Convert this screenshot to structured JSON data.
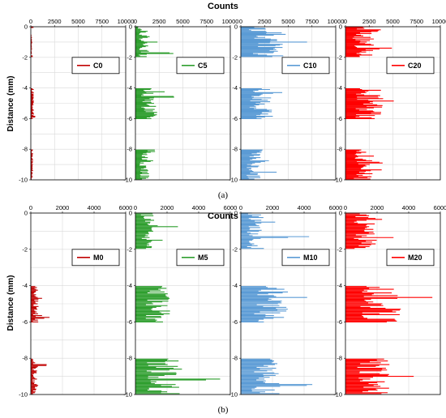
{
  "figure": {
    "caption_a": "(a)",
    "caption_b": "(b)",
    "colors": {
      "0": "#C00000",
      "5": "#2E9E2E",
      "10": "#5B9BD5",
      "20": "#FF0000"
    }
  },
  "chart_data": [
    {
      "type": "bar",
      "orientation": "horizontal",
      "title": "Counts",
      "ylabel": "Distance (mm)",
      "xlim": [
        0,
        10000
      ],
      "xticks": [
        "0",
        "2500",
        "5000",
        "7500",
        "10000"
      ],
      "ylim": [
        -10,
        0
      ],
      "yticks": [
        "0",
        "-2",
        "-4",
        "-6",
        "-8",
        "-10"
      ],
      "grid": true,
      "legend_position": "center-right",
      "panels": [
        {
          "name": "C0",
          "color": "#C00000",
          "profile": [
            [
              -0.0,
              0.05,
              300
            ],
            [
              -0.5,
              1.8,
              150
            ],
            [
              -1.9,
              2.0,
              250
            ],
            [
              -4.0,
              6.0,
              350
            ],
            [
              -5.8,
              5.9,
              900
            ],
            [
              -8.0,
              10.0,
              250
            ]
          ],
          "seed": 11
        },
        {
          "name": "C5",
          "color": "#2E9E2E",
          "profile": [
            [
              -0.0,
              0.3,
              900
            ],
            [
              -0.3,
              1.8,
              1500
            ],
            [
              -1.0,
              1.1,
              2700
            ],
            [
              -1.7,
              1.8,
              4300
            ],
            [
              -1.8,
              2.0,
              1200
            ],
            [
              -4.0,
              6.0,
              2300
            ],
            [
              -4.5,
              4.6,
              4300
            ],
            [
              -4.2,
              4.3,
              3200
            ],
            [
              -8.0,
              10.0,
              1500
            ],
            [
              -8.0,
              8.2,
              2700
            ],
            [
              -8.7,
              8.8,
              3700
            ]
          ],
          "seed": 22
        },
        {
          "name": "C10",
          "color": "#5B9BD5",
          "profile": [
            [
              -0.0,
              0.3,
              3000
            ],
            [
              -0.3,
              2.0,
              4500
            ],
            [
              -1.0,
              1.1,
              9000
            ],
            [
              -0.4,
              0.5,
              4900
            ],
            [
              -1.9,
              2.0,
              6000
            ],
            [
              -4.0,
              6.0,
              3500
            ],
            [
              -4.2,
              4.3,
              4500
            ],
            [
              -5.5,
              5.6,
              4600
            ],
            [
              -8.0,
              10.0,
              2300
            ],
            [
              -9.4,
              9.5,
              4200
            ],
            [
              -8.7,
              8.8,
              3500
            ]
          ],
          "seed": 33
        },
        {
          "name": "C20",
          "color": "#FF0000",
          "profile": [
            [
              -0.0,
              2.0,
              3000
            ],
            [
              -0.2,
              0.3,
              4200
            ],
            [
              -1.4,
              1.5,
              5200
            ],
            [
              -4.0,
              6.0,
              4200
            ],
            [
              -5.6,
              5.7,
              8800
            ],
            [
              -4.8,
              4.9,
              6400
            ],
            [
              -8.0,
              10.0,
              3000
            ],
            [
              -8.8,
              8.9,
              4100
            ],
            [
              -9.3,
              9.4,
              4100
            ]
          ],
          "seed": 44
        }
      ]
    },
    {
      "type": "bar",
      "orientation": "horizontal",
      "title": "Counts",
      "ylabel": "Distance (mm)",
      "xlim": [
        0,
        6000
      ],
      "xticks": [
        "0",
        "2000",
        "4000",
        "6000"
      ],
      "ylim": [
        -10,
        0
      ],
      "yticks": [
        "0",
        "-2",
        "-4",
        "-6",
        "-8",
        "-10"
      ],
      "grid": true,
      "legend_position": "center-right",
      "panels": [
        {
          "name": "M0",
          "color": "#C00000",
          "profile": [
            [
              -4.0,
              6.0,
              500
            ],
            [
              -5.6,
              5.8,
              1200
            ],
            [
              -4.6,
              4.7,
              800
            ],
            [
              -8.0,
              10.0,
              400
            ],
            [
              -8.3,
              8.5,
              1500
            ],
            [
              -9.5,
              9.6,
              700
            ]
          ],
          "seed": 55
        },
        {
          "name": "M5",
          "color": "#2E9E2E",
          "profile": [
            [
              -0.0,
              2.0,
              1200
            ],
            [
              -0.7,
              0.8,
              3500
            ],
            [
              -1.5,
              1.6,
              2200
            ],
            [
              -4.0,
              6.0,
              2200
            ],
            [
              -5.4,
              5.5,
              5600
            ],
            [
              -4.5,
              4.6,
              3800
            ],
            [
              -8.0,
              10.0,
              2800
            ],
            [
              -9.1,
              9.2,
              5500
            ],
            [
              -8.5,
              8.6,
              3800
            ]
          ],
          "seed": 66
        },
        {
          "name": "M10",
          "color": "#5B9BD5",
          "profile": [
            [
              -0.0,
              2.0,
              1500
            ],
            [
              -1.3,
              1.4,
              4600
            ],
            [
              -0.4,
              0.5,
              2500
            ],
            [
              -4.0,
              6.0,
              3000
            ],
            [
              -4.6,
              4.7,
              4400
            ],
            [
              -4.3,
              4.4,
              2500
            ],
            [
              -8.0,
              10.0,
              2500
            ],
            [
              -9.4,
              9.5,
              4700
            ],
            [
              -8.2,
              8.3,
              3600
            ]
          ],
          "seed": 77
        },
        {
          "name": "M20",
          "color": "#FF0000",
          "profile": [
            [
              -0.0,
              2.0,
              2000
            ],
            [
              -1.3,
              1.4,
              3800
            ],
            [
              -0.3,
              0.4,
              2400
            ],
            [
              -4.0,
              6.0,
              3500
            ],
            [
              -4.6,
              4.7,
              5700
            ],
            [
              -5.5,
              5.6,
              4500
            ],
            [
              -8.0,
              10.0,
              2800
            ],
            [
              -8.9,
              9.0,
              4600
            ],
            [
              -9.5,
              9.6,
              4000
            ]
          ],
          "seed": 88
        }
      ]
    }
  ]
}
